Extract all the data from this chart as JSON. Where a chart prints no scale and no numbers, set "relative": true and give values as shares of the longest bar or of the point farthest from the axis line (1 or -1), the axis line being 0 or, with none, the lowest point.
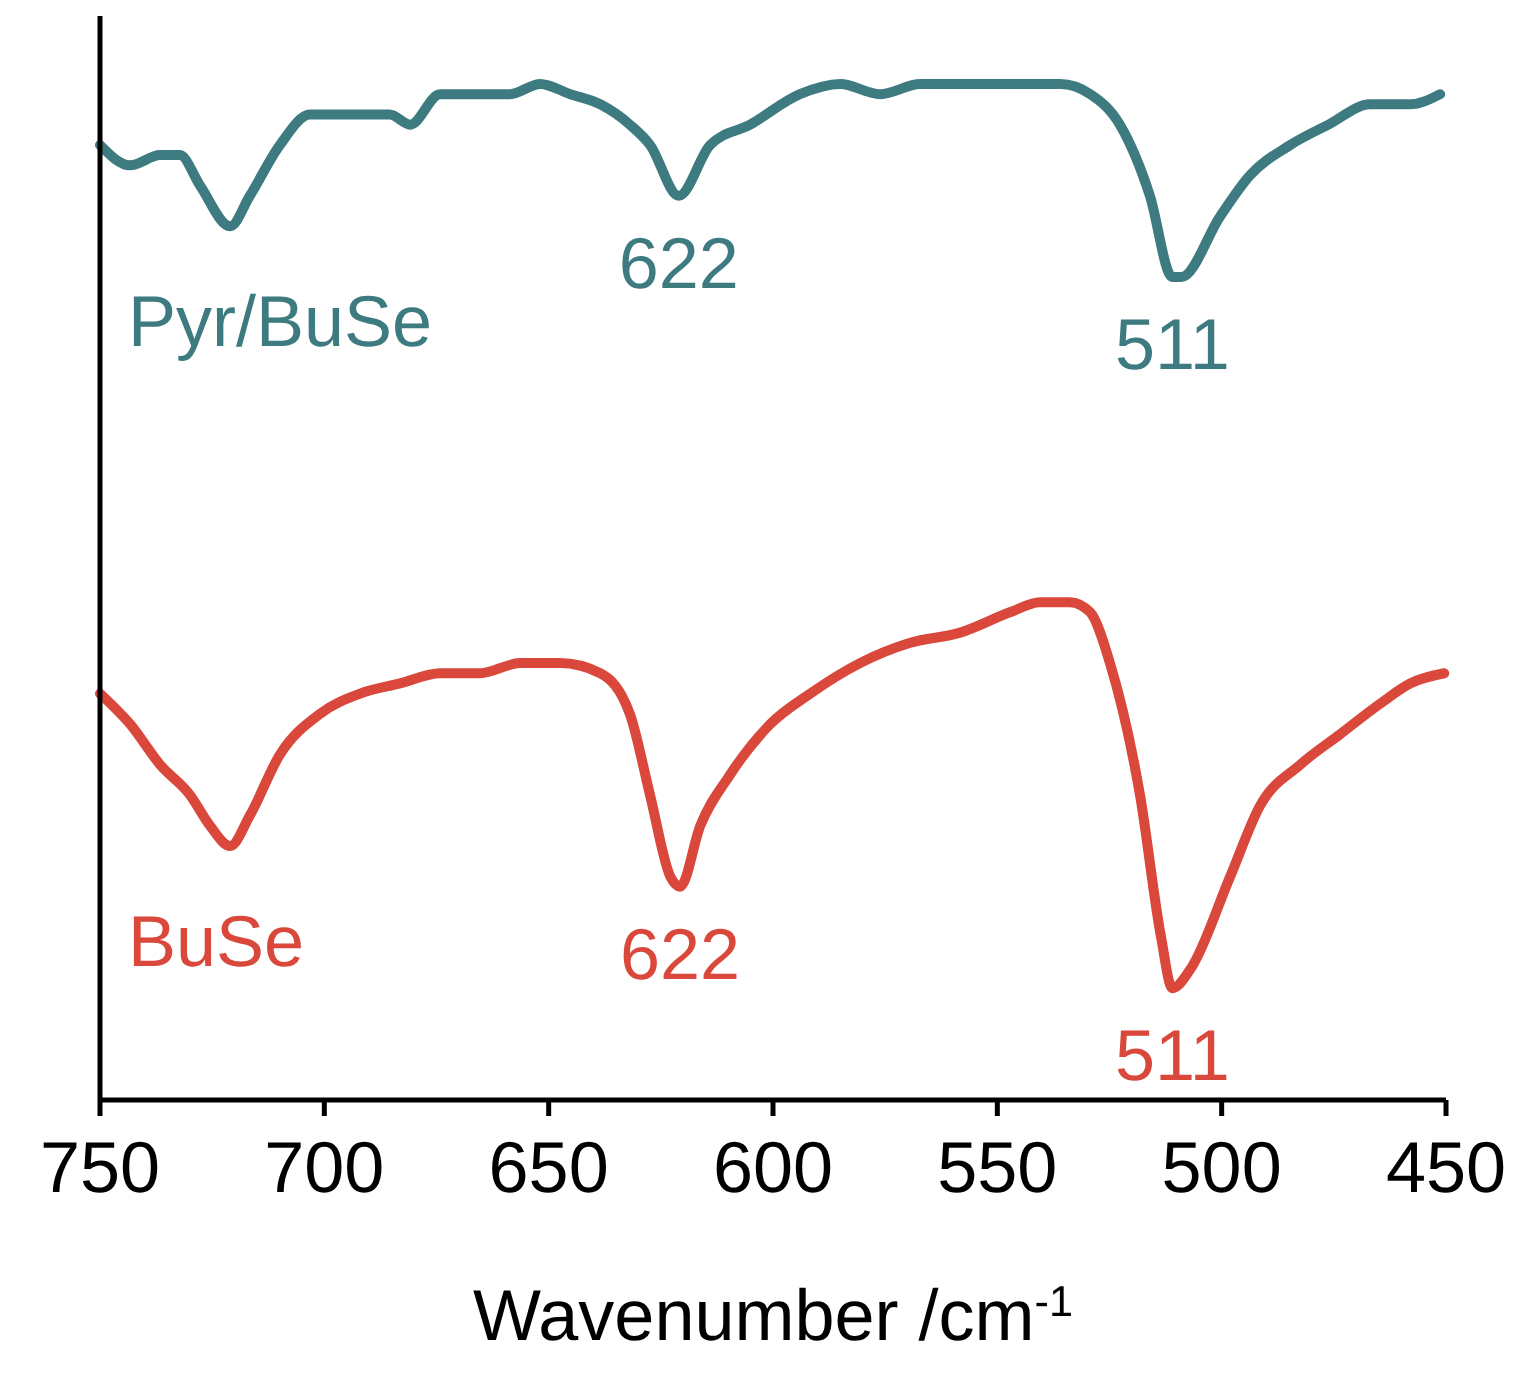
{
  "chart_data": {
    "type": "line",
    "relative": true,
    "xlabel": "Wavenumber /cm$^{-1}$",
    "xlim": [
      750,
      450
    ],
    "xticks": [
      750,
      700,
      650,
      600,
      550,
      500,
      450
    ],
    "grid": false,
    "legend": false,
    "line_style": "solid",
    "marker": "none",
    "series": [
      {
        "name": "Pyr/BuSe",
        "color": "#3e7b80",
        "x": [
          750,
          743.3,
          736.6,
          732.2,
          727.7,
          721,
          716.6,
          709.9,
          703.2,
          694.3,
          685.4,
          680.9,
          674.2,
          665.3,
          658.6,
          651.9,
          645.2,
          638.5,
          631.9,
          627.4,
          621,
          614,
          605.1,
          594,
          585,
          576.1,
          567.2,
          558.3,
          549.4,
          536,
          529.3,
          522.7,
          516,
          511,
          509,
          500.3,
          493.7,
          484.7,
          476.2,
          466.9,
          458,
          451.3
        ],
        "values": [
          0.94,
          0.92,
          0.93,
          0.93,
          0.9,
          0.86,
          0.89,
          0.94,
          0.97,
          0.97,
          0.97,
          0.96,
          0.99,
          0.99,
          0.99,
          1,
          0.99,
          0.98,
          0.96,
          0.94,
          0.89,
          0.94,
          0.96,
          0.99,
          1,
          0.99,
          1,
          1,
          1,
          1,
          0.99,
          0.96,
          0.89,
          0.81,
          0.81,
          0.87,
          0.91,
          0.94,
          0.96,
          0.98,
          0.98,
          0.99
        ]
      },
      {
        "name": "BuSe",
        "color": "#d9483b",
        "x": [
          750,
          743.3,
          736.6,
          729.9,
          725.5,
          721,
          716.6,
          709.9,
          701,
          692,
          683.1,
          674.2,
          665.3,
          656.4,
          647.5,
          638.5,
          631.9,
          627.4,
          622.9,
          620.7,
          616.2,
          609.6,
          600.6,
          591.7,
          580.6,
          569.4,
          558.3,
          547.2,
          540.5,
          533.8,
          529.3,
          524.9,
          518.2,
          513.5,
          511,
          506.8,
          498.1,
          491.4,
          482.5,
          473.6,
          464.7,
          458,
          450.4
        ],
        "values": [
          0.4,
          0.37,
          0.33,
          0.3,
          0.27,
          0.25,
          0.28,
          0.34,
          0.38,
          0.4,
          0.41,
          0.42,
          0.42,
          0.43,
          0.43,
          0.42,
          0.38,
          0.3,
          0.22,
          0.21,
          0.27,
          0.32,
          0.37,
          0.4,
          0.43,
          0.45,
          0.46,
          0.48,
          0.49,
          0.49,
          0.48,
          0.43,
          0.3,
          0.16,
          0.11,
          0.13,
          0.22,
          0.29,
          0.33,
          0.36,
          0.39,
          0.41,
          0.42
        ]
      }
    ],
    "annotations": [
      {
        "text": "622",
        "x": 621,
        "y": 0.89
      },
      {
        "text": "511",
        "x": 511,
        "y": 0.81
      },
      {
        "text": "622",
        "x": 620.7,
        "y": 0.21
      },
      {
        "text": "511",
        "x": 511,
        "y": 0.11
      }
    ]
  }
}
